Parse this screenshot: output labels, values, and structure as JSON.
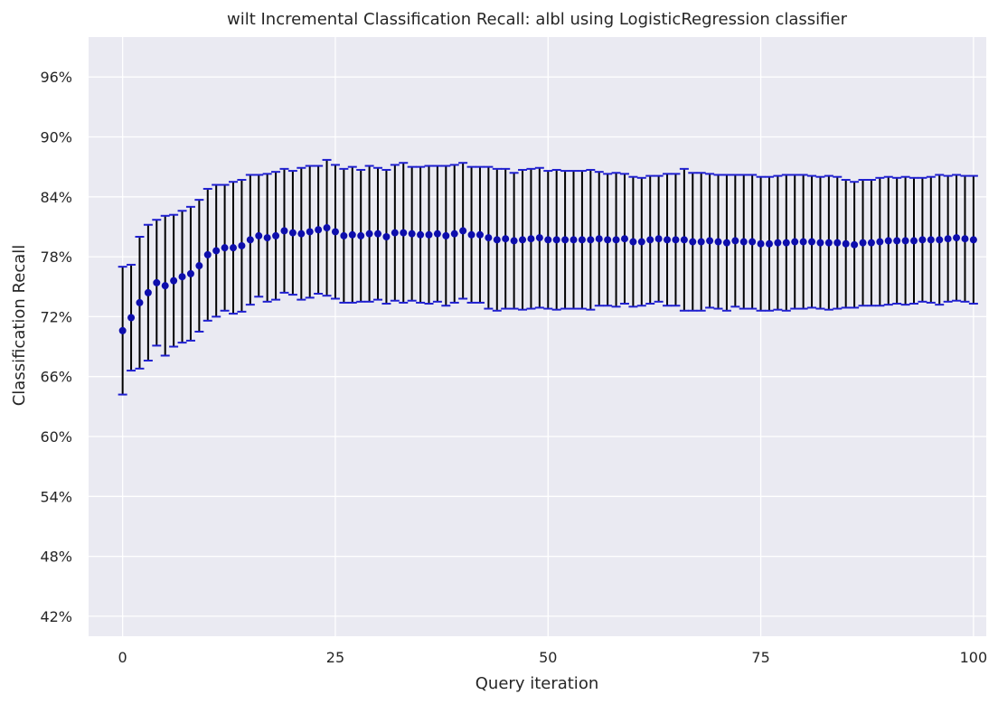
{
  "chart_data": {
    "type": "scatter",
    "title": "wilt Incremental Classification Recall: albl using LogisticRegression classifier",
    "xlabel": "Query iteration",
    "ylabel": "Classification Recall",
    "xlim": [
      -4,
      101.5
    ],
    "ylim": [
      0.4,
      1.0
    ],
    "xticks": [
      0,
      25,
      50,
      75,
      100
    ],
    "xtick_labels": [
      "0",
      "25",
      "50",
      "75",
      "100"
    ],
    "yticks": [
      0.42,
      0.48,
      0.54,
      0.6,
      0.66,
      0.72,
      0.78,
      0.84,
      0.9,
      0.96
    ],
    "ytick_labels": [
      "42%",
      "48%",
      "54%",
      "60%",
      "66%",
      "72%",
      "78%",
      "84%",
      "90%",
      "96%"
    ],
    "grid": true,
    "colors": {
      "background": "#eaeaf2",
      "grid": "#ffffff",
      "marker": "#0d0dad",
      "errorbar": "#000000",
      "cap": "#1f1fd0"
    },
    "series": [
      {
        "x": [
          0,
          1,
          2,
          3,
          4,
          5,
          6,
          7,
          8,
          9,
          10,
          11,
          12,
          13,
          14,
          15,
          16,
          17,
          18,
          19,
          20,
          21,
          22,
          23,
          24,
          25,
          26,
          27,
          28,
          29,
          30,
          31,
          32,
          33,
          34,
          35,
          36,
          37,
          38,
          39,
          40,
          41,
          42,
          43,
          44,
          45,
          46,
          47,
          48,
          49,
          50,
          51,
          52,
          53,
          54,
          55,
          56,
          57,
          58,
          59,
          60,
          61,
          62,
          63,
          64,
          65,
          66,
          67,
          68,
          69,
          70,
          71,
          72,
          73,
          74,
          75,
          76,
          77,
          78,
          79,
          80,
          81,
          82,
          83,
          84,
          85,
          86,
          87,
          88,
          89,
          90,
          91,
          92,
          93,
          94,
          95,
          96,
          97,
          98,
          99,
          100
        ],
        "y": [
          0.706,
          0.719,
          0.734,
          0.744,
          0.754,
          0.751,
          0.756,
          0.76,
          0.763,
          0.771,
          0.782,
          0.786,
          0.789,
          0.789,
          0.791,
          0.797,
          0.801,
          0.799,
          0.801,
          0.806,
          0.804,
          0.803,
          0.805,
          0.807,
          0.809,
          0.805,
          0.801,
          0.802,
          0.801,
          0.803,
          0.803,
          0.8,
          0.804,
          0.804,
          0.803,
          0.802,
          0.802,
          0.803,
          0.801,
          0.803,
          0.806,
          0.802,
          0.802,
          0.799,
          0.797,
          0.798,
          0.796,
          0.797,
          0.798,
          0.799,
          0.797,
          0.797,
          0.797,
          0.797,
          0.797,
          0.797,
          0.798,
          0.797,
          0.797,
          0.798,
          0.795,
          0.795,
          0.797,
          0.798,
          0.797,
          0.797,
          0.797,
          0.795,
          0.795,
          0.796,
          0.795,
          0.794,
          0.796,
          0.795,
          0.795,
          0.793,
          0.793,
          0.794,
          0.794,
          0.795,
          0.795,
          0.795,
          0.794,
          0.794,
          0.794,
          0.793,
          0.792,
          0.794,
          0.794,
          0.795,
          0.796,
          0.796,
          0.796,
          0.796,
          0.797,
          0.797,
          0.797,
          0.798,
          0.799,
          0.798,
          0.797
        ],
        "yerr": [
          0.064,
          0.053,
          0.066,
          0.068,
          0.063,
          0.07,
          0.066,
          0.066,
          0.067,
          0.066,
          0.066,
          0.066,
          0.063,
          0.066,
          0.066,
          0.065,
          0.061,
          0.064,
          0.064,
          0.062,
          0.062,
          0.066,
          0.066,
          0.064,
          0.068,
          0.067,
          0.067,
          0.068,
          0.066,
          0.068,
          0.066,
          0.067,
          0.068,
          0.07,
          0.067,
          0.068,
          0.069,
          0.068,
          0.07,
          0.069,
          0.068,
          0.068,
          0.068,
          0.071,
          0.071,
          0.07,
          0.068,
          0.07,
          0.07,
          0.07,
          0.069,
          0.07,
          0.069,
          0.069,
          0.069,
          0.07,
          0.067,
          0.066,
          0.067,
          0.065,
          0.065,
          0.064,
          0.064,
          0.063,
          0.066,
          0.066,
          0.071,
          0.069,
          0.069,
          0.067,
          0.067,
          0.068,
          0.066,
          0.067,
          0.067,
          0.067,
          0.067,
          0.067,
          0.068,
          0.067,
          0.067,
          0.066,
          0.066,
          0.067,
          0.066,
          0.064,
          0.063,
          0.063,
          0.063,
          0.064,
          0.064,
          0.063,
          0.064,
          0.063,
          0.062,
          0.063,
          0.065,
          0.063,
          0.063,
          0.063,
          0.064
        ]
      }
    ]
  }
}
